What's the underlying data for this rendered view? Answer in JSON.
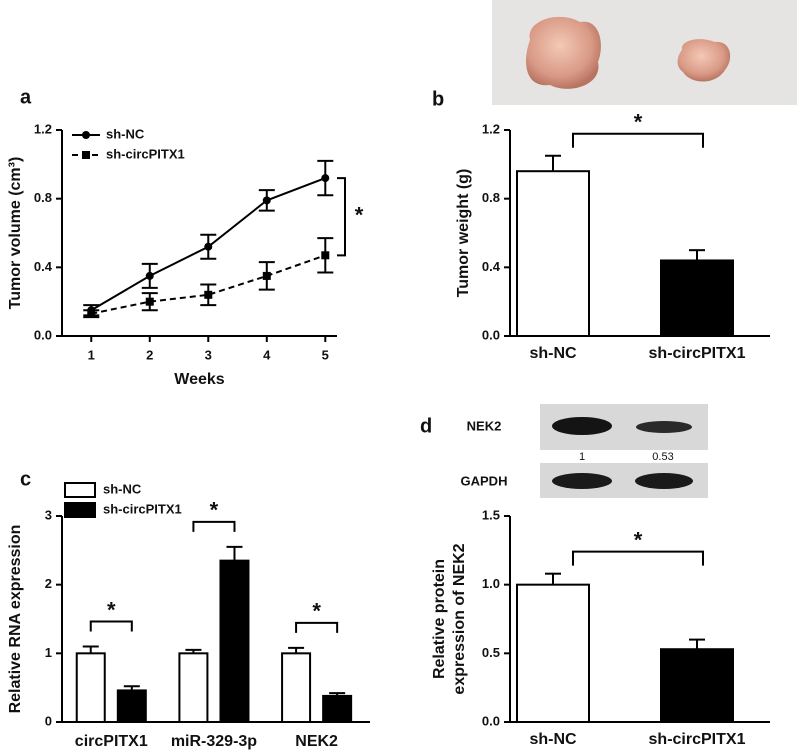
{
  "chart_data": [
    {
      "panel": "a",
      "type": "line",
      "xlabel": "Weeks",
      "ylabel": "Tumor volume (cm³)",
      "x": [
        1,
        2,
        3,
        4,
        5
      ],
      "xticks": [
        1,
        2,
        3,
        4,
        5
      ],
      "xlim": [
        0.5,
        5.2
      ],
      "ylim": [
        0,
        1.2
      ],
      "yticks": [
        {
          "value": 0,
          "label": "0.0"
        },
        {
          "value": 0.4,
          "label": "0.4"
        },
        {
          "value": 0.8,
          "label": "0.8"
        },
        {
          "value": 1.2,
          "label": "1.2"
        }
      ],
      "series": [
        {
          "name": "sh-NC",
          "color": "#000000",
          "line_style": "solid",
          "marker": "circle",
          "values": [
            0.15,
            0.35,
            0.52,
            0.79,
            0.92
          ],
          "errors": [
            0.03,
            0.07,
            0.07,
            0.06,
            0.1
          ]
        },
        {
          "name": "sh-circPITX1",
          "color": "#000000",
          "line_style": "dashed",
          "marker": "square",
          "values": [
            0.13,
            0.2,
            0.24,
            0.35,
            0.47
          ],
          "errors": [
            0.02,
            0.05,
            0.06,
            0.08,
            0.1
          ]
        }
      ],
      "significance": "*"
    },
    {
      "panel": "b",
      "type": "bar",
      "ylabel": "Tumor weight (g)",
      "categories": [
        "sh-NC",
        "sh-circPITX1"
      ],
      "values": [
        0.96,
        0.44
      ],
      "errors": [
        0.09,
        0.06
      ],
      "colors": [
        "#ffffff",
        "#000000"
      ],
      "ylim": [
        0,
        1.2
      ],
      "yticks": [
        {
          "value": 0,
          "label": "0.0"
        },
        {
          "value": 0.4,
          "label": "0.4"
        },
        {
          "value": 0.8,
          "label": "0.8"
        },
        {
          "value": 1.2,
          "label": "1.2"
        }
      ],
      "significance": "*"
    },
    {
      "panel": "c",
      "type": "grouped_bar",
      "ylabel": "Relative RNA expression",
      "categories": [
        "circPITX1",
        "miR-329-3p",
        "NEK2"
      ],
      "series": [
        {
          "name": "sh-NC",
          "color": "#ffffff",
          "values": [
            1.0,
            1.0,
            1.0
          ],
          "errors": [
            0.1,
            0.05,
            0.08
          ]
        },
        {
          "name": "sh-circPITX1",
          "color": "#000000",
          "values": [
            0.46,
            2.35,
            0.38
          ],
          "errors": [
            0.06,
            0.2,
            0.04
          ]
        }
      ],
      "ylim": [
        0,
        3
      ],
      "yticks": [
        0,
        1,
        2,
        3
      ],
      "significance": [
        "*",
        "*",
        "*"
      ]
    },
    {
      "panel": "d",
      "type": "bar",
      "ylabel": [
        "Relative protein",
        "expression of NEK2"
      ],
      "categories": [
        "sh-NC",
        "sh-circPITX1"
      ],
      "values": [
        1.0,
        0.53
      ],
      "errors": [
        0.08,
        0.07
      ],
      "colors": [
        "#ffffff",
        "#000000"
      ],
      "ylim": [
        0,
        1.5
      ],
      "yticks": [
        {
          "value": 0,
          "label": "0.0"
        },
        {
          "value": 0.5,
          "label": "0.5"
        },
        {
          "value": 1.0,
          "label": "1.0"
        },
        {
          "value": 1.5,
          "label": "1.5"
        }
      ],
      "significance": "*",
      "blot": {
        "labels": [
          "NEK2",
          "GAPDH"
        ],
        "quantification": [
          1,
          0.53
        ]
      }
    }
  ]
}
